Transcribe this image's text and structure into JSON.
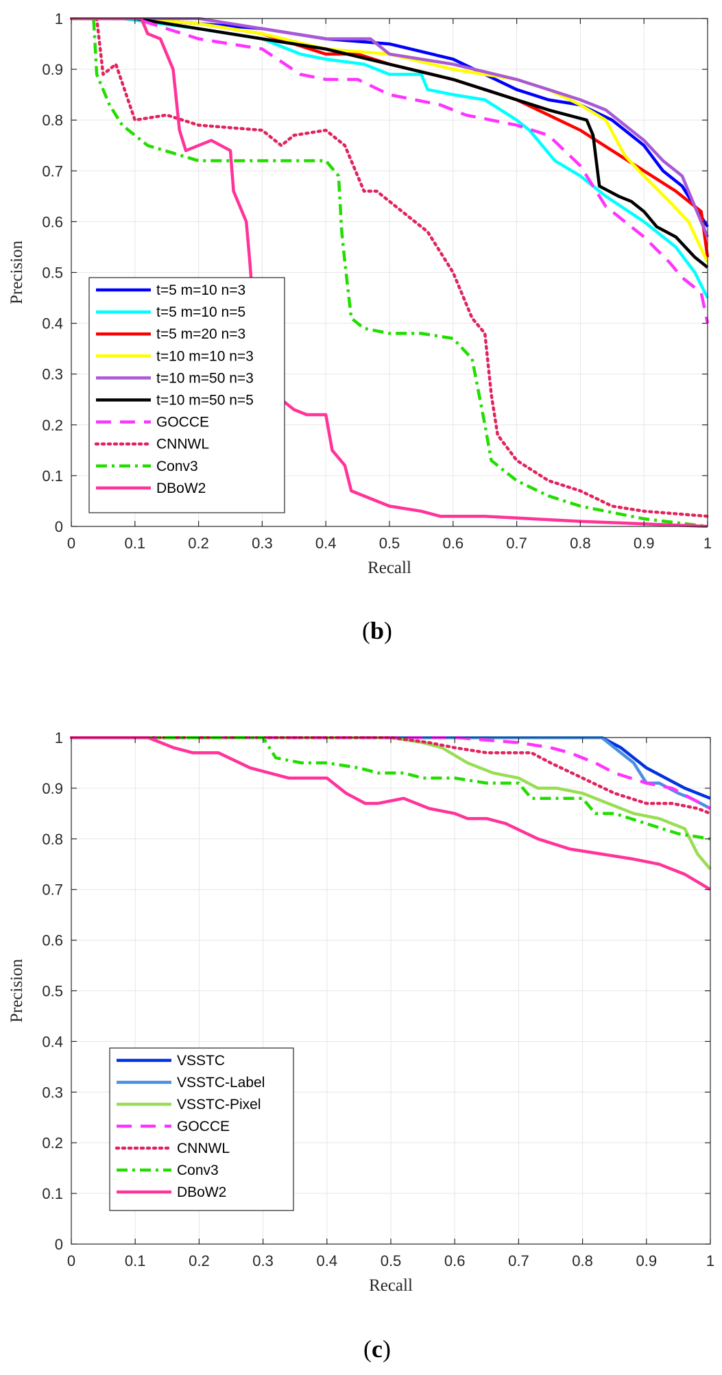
{
  "panels": [
    {
      "caption_open": "(",
      "caption_letter": "b",
      "caption_close": ")",
      "chart_data": {
        "type": "line",
        "title": "",
        "xlabel": "Recall",
        "ylabel": "Precision",
        "xlim": [
          0,
          1
        ],
        "ylim": [
          0,
          1
        ],
        "xticks": [
          "0",
          "0.1",
          "0.2",
          "0.3",
          "0.4",
          "0.5",
          "0.6",
          "0.7",
          "0.8",
          "0.9",
          "1"
        ],
        "yticks": [
          "0",
          "0.1",
          "0.2",
          "0.3",
          "0.4",
          "0.5",
          "0.6",
          "0.7",
          "0.8",
          "0.9",
          "1"
        ],
        "grid": true,
        "legend_position": "lower-left",
        "series": [
          {
            "name": "t=5 m=10 n=3",
            "color": "#0000ff",
            "dash": "solid",
            "x": [
              0,
              0.1,
              0.3,
              0.4,
              0.5,
              0.6,
              0.65,
              0.7,
              0.75,
              0.8,
              0.85,
              0.88,
              0.9,
              0.93,
              0.96,
              0.98,
              1.0
            ],
            "y": [
              1.0,
              1.0,
              0.98,
              0.96,
              0.95,
              0.92,
              0.89,
              0.86,
              0.84,
              0.83,
              0.8,
              0.77,
              0.75,
              0.7,
              0.67,
              0.63,
              0.59
            ]
          },
          {
            "name": "t=5 m=10 n=5",
            "color": "#00ffff",
            "dash": "solid",
            "x": [
              0,
              0.08,
              0.2,
              0.3,
              0.36,
              0.4,
              0.46,
              0.5,
              0.55,
              0.56,
              0.6,
              0.65,
              0.7,
              0.72,
              0.76,
              0.8,
              0.84,
              0.9,
              0.95,
              0.98,
              1.0
            ],
            "y": [
              1.0,
              1.0,
              0.98,
              0.96,
              0.93,
              0.92,
              0.91,
              0.89,
              0.89,
              0.86,
              0.85,
              0.84,
              0.8,
              0.78,
              0.72,
              0.69,
              0.65,
              0.6,
              0.55,
              0.5,
              0.45
            ]
          },
          {
            "name": "t=5 m=20 n=3",
            "color": "#ff0000",
            "dash": "solid",
            "x": [
              0,
              0.1,
              0.2,
              0.3,
              0.35,
              0.4,
              0.45,
              0.5,
              0.6,
              0.65,
              0.7,
              0.75,
              0.8,
              0.85,
              0.9,
              0.95,
              0.99,
              1.0
            ],
            "y": [
              1.0,
              1.0,
              0.99,
              0.97,
              0.95,
              0.93,
              0.93,
              0.91,
              0.88,
              0.86,
              0.84,
              0.81,
              0.78,
              0.74,
              0.7,
              0.66,
              0.62,
              0.53
            ]
          },
          {
            "name": "t=10 m=10 n=3",
            "color": "#ffff00",
            "dash": "solid",
            "x": [
              0,
              0.1,
              0.2,
              0.3,
              0.4,
              0.5,
              0.6,
              0.7,
              0.75,
              0.8,
              0.84,
              0.87,
              0.9,
              0.94,
              0.97,
              1.0
            ],
            "y": [
              1.0,
              1.0,
              0.99,
              0.97,
              0.94,
              0.93,
              0.9,
              0.88,
              0.86,
              0.83,
              0.8,
              0.73,
              0.69,
              0.64,
              0.6,
              0.52
            ]
          },
          {
            "name": "t=10 m=50 n=3",
            "color": "#a959d6",
            "dash": "solid",
            "x": [
              0,
              0.1,
              0.2,
              0.3,
              0.4,
              0.47,
              0.5,
              0.55,
              0.6,
              0.7,
              0.75,
              0.8,
              0.84,
              0.88,
              0.9,
              0.93,
              0.96,
              0.98,
              1.0
            ],
            "y": [
              1.0,
              1.0,
              1.0,
              0.98,
              0.96,
              0.96,
              0.93,
              0.92,
              0.91,
              0.88,
              0.86,
              0.84,
              0.82,
              0.78,
              0.76,
              0.72,
              0.69,
              0.63,
              0.57
            ]
          },
          {
            "name": "t=10 m=50 n=5",
            "color": "#000000",
            "dash": "solid",
            "x": [
              0,
              0.1,
              0.2,
              0.3,
              0.4,
              0.5,
              0.6,
              0.65,
              0.7,
              0.75,
              0.78,
              0.81,
              0.82,
              0.83,
              0.86,
              0.88,
              0.9,
              0.92,
              0.95,
              0.98,
              1.0
            ],
            "y": [
              1.0,
              1.0,
              0.98,
              0.96,
              0.94,
              0.91,
              0.88,
              0.86,
              0.84,
              0.82,
              0.81,
              0.8,
              0.77,
              0.67,
              0.65,
              0.64,
              0.62,
              0.59,
              0.57,
              0.53,
              0.51
            ]
          },
          {
            "name": "GOCCE",
            "color": "#ff33ff",
            "dash": "dashed",
            "x": [
              0,
              0.1,
              0.2,
              0.3,
              0.36,
              0.4,
              0.45,
              0.5,
              0.58,
              0.62,
              0.7,
              0.75,
              0.8,
              0.84,
              0.9,
              0.94,
              0.96,
              0.99,
              1.0
            ],
            "y": [
              1.0,
              1.0,
              0.96,
              0.94,
              0.89,
              0.88,
              0.88,
              0.85,
              0.83,
              0.81,
              0.79,
              0.77,
              0.71,
              0.63,
              0.57,
              0.52,
              0.49,
              0.46,
              0.4
            ]
          },
          {
            "name": "CNNWL",
            "color": "#e0245e",
            "dash": "dotted",
            "x": [
              0,
              0.04,
              0.05,
              0.07,
              0.1,
              0.15,
              0.2,
              0.3,
              0.33,
              0.35,
              0.4,
              0.43,
              0.46,
              0.48,
              0.5,
              0.56,
              0.6,
              0.63,
              0.65,
              0.66,
              0.67,
              0.7,
              0.75,
              0.8,
              0.85,
              0.9,
              1.0
            ],
            "y": [
              1.0,
              1.0,
              0.89,
              0.91,
              0.8,
              0.81,
              0.79,
              0.78,
              0.75,
              0.77,
              0.78,
              0.75,
              0.66,
              0.66,
              0.64,
              0.58,
              0.5,
              0.41,
              0.38,
              0.26,
              0.18,
              0.13,
              0.09,
              0.07,
              0.04,
              0.03,
              0.02
            ]
          },
          {
            "name": "Conv3",
            "color": "#22dd00",
            "dash": "dashdot",
            "x": [
              0,
              0.035,
              0.04,
              0.06,
              0.08,
              0.12,
              0.2,
              0.3,
              0.35,
              0.4,
              0.42,
              0.425,
              0.43,
              0.44,
              0.46,
              0.5,
              0.55,
              0.6,
              0.63,
              0.65,
              0.66,
              0.7,
              0.75,
              0.8,
              0.9,
              1.0
            ],
            "y": [
              1.0,
              1.0,
              0.89,
              0.83,
              0.79,
              0.75,
              0.72,
              0.72,
              0.72,
              0.72,
              0.69,
              0.58,
              0.52,
              0.41,
              0.39,
              0.38,
              0.38,
              0.37,
              0.33,
              0.2,
              0.13,
              0.09,
              0.06,
              0.04,
              0.015,
              0.0
            ]
          },
          {
            "name": "DBoW2",
            "color": "#ff3399",
            "dash": "solid",
            "x": [
              0,
              0.11,
              0.12,
              0.14,
              0.16,
              0.17,
              0.18,
              0.22,
              0.25,
              0.255,
              0.275,
              0.28,
              0.285,
              0.29,
              0.33,
              0.35,
              0.37,
              0.4,
              0.41,
              0.43,
              0.44,
              0.5,
              0.55,
              0.58,
              0.65,
              0.8,
              1.0
            ],
            "y": [
              1.0,
              1.0,
              0.97,
              0.96,
              0.9,
              0.78,
              0.74,
              0.76,
              0.74,
              0.66,
              0.6,
              0.53,
              0.45,
              0.32,
              0.25,
              0.23,
              0.22,
              0.22,
              0.15,
              0.12,
              0.07,
              0.04,
              0.03,
              0.02,
              0.02,
              0.01,
              0.0
            ]
          }
        ]
      }
    },
    {
      "caption_open": "(",
      "caption_letter": "c",
      "caption_close": ")",
      "chart_data": {
        "type": "line",
        "title": "",
        "xlabel": "Recall",
        "ylabel": "Precision",
        "xlim": [
          0,
          1
        ],
        "ylim": [
          0,
          1
        ],
        "xticks": [
          "0",
          "0.1",
          "0.2",
          "0.3",
          "0.4",
          "0.5",
          "0.6",
          "0.7",
          "0.8",
          "0.9",
          "1"
        ],
        "yticks": [
          "0",
          "0.1",
          "0.2",
          "0.3",
          "0.4",
          "0.5",
          "0.6",
          "0.7",
          "0.8",
          "0.9",
          "1"
        ],
        "grid": true,
        "legend_position": "lower-left",
        "series": [
          {
            "name": "VSSTC",
            "color": "#0033dd",
            "dash": "solid",
            "x": [
              0,
              0.83,
              0.86,
              0.88,
              0.9,
              0.93,
              0.96,
              0.98,
              1.0
            ],
            "y": [
              1.0,
              1.0,
              0.98,
              0.96,
              0.94,
              0.92,
              0.9,
              0.89,
              0.88
            ]
          },
          {
            "name": "VSSTC-Label",
            "color": "#4a90e2",
            "dash": "solid",
            "x": [
              0,
              0.83,
              0.86,
              0.88,
              0.9,
              0.92,
              0.95,
              0.97,
              1.0
            ],
            "y": [
              1.0,
              1.0,
              0.97,
              0.95,
              0.91,
              0.91,
              0.89,
              0.88,
              0.86
            ]
          },
          {
            "name": "VSSTC-Pixel",
            "color": "#99dd55",
            "dash": "solid",
            "x": [
              0,
              0.5,
              0.55,
              0.58,
              0.62,
              0.66,
              0.7,
              0.73,
              0.76,
              0.8,
              0.84,
              0.88,
              0.92,
              0.96,
              0.98,
              1.0
            ],
            "y": [
              1.0,
              1.0,
              0.99,
              0.98,
              0.95,
              0.93,
              0.92,
              0.9,
              0.9,
              0.89,
              0.87,
              0.85,
              0.84,
              0.82,
              0.77,
              0.74
            ]
          },
          {
            "name": "GOCCE",
            "color": "#ff33ff",
            "dash": "dashed",
            "x": [
              0,
              0.6,
              0.7,
              0.75,
              0.78,
              0.82,
              0.85,
              0.9,
              0.94,
              0.97,
              1.0
            ],
            "y": [
              1.0,
              1.0,
              0.99,
              0.98,
              0.97,
              0.95,
              0.93,
              0.91,
              0.9,
              0.88,
              0.86
            ]
          },
          {
            "name": "CNNWL",
            "color": "#e0245e",
            "dash": "dotted",
            "x": [
              0,
              0.5,
              0.56,
              0.6,
              0.65,
              0.7,
              0.72,
              0.75,
              0.8,
              0.85,
              0.9,
              0.94,
              0.98,
              1.0
            ],
            "y": [
              1.0,
              1.0,
              0.99,
              0.98,
              0.97,
              0.97,
              0.97,
              0.95,
              0.92,
              0.89,
              0.87,
              0.87,
              0.86,
              0.85
            ]
          },
          {
            "name": "Conv3",
            "color": "#22dd00",
            "dash": "dashdot",
            "x": [
              0,
              0.3,
              0.32,
              0.36,
              0.4,
              0.45,
              0.48,
              0.52,
              0.55,
              0.6,
              0.65,
              0.7,
              0.72,
              0.76,
              0.8,
              0.82,
              0.85,
              0.9,
              0.95,
              1.0
            ],
            "y": [
              1.0,
              1.0,
              0.96,
              0.95,
              0.95,
              0.94,
              0.93,
              0.93,
              0.92,
              0.92,
              0.91,
              0.91,
              0.88,
              0.88,
              0.88,
              0.85,
              0.85,
              0.83,
              0.81,
              0.8
            ]
          },
          {
            "name": "DBoW2",
            "color": "#ff3399",
            "dash": "solid",
            "x": [
              0,
              0.12,
              0.16,
              0.19,
              0.23,
              0.28,
              0.34,
              0.4,
              0.43,
              0.46,
              0.48,
              0.52,
              0.56,
              0.6,
              0.62,
              0.65,
              0.68,
              0.73,
              0.78,
              0.83,
              0.88,
              0.92,
              0.96,
              1.0
            ],
            "y": [
              1.0,
              1.0,
              0.98,
              0.97,
              0.97,
              0.94,
              0.92,
              0.92,
              0.89,
              0.87,
              0.87,
              0.88,
              0.86,
              0.85,
              0.84,
              0.84,
              0.83,
              0.8,
              0.78,
              0.77,
              0.76,
              0.75,
              0.73,
              0.7
            ]
          }
        ]
      }
    }
  ]
}
